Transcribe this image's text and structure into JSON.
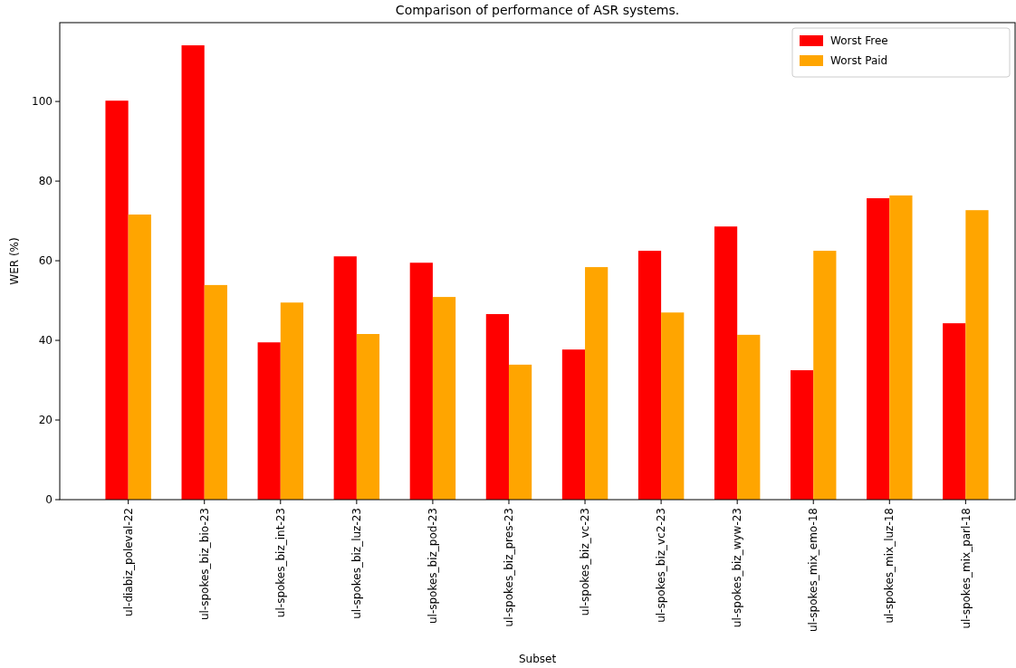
{
  "chart_data": {
    "type": "bar",
    "title": "Comparison of performance of ASR systems.",
    "xlabel": "Subset",
    "ylabel": "WER (%)",
    "categories": [
      "ul-diabiz_poleval-22",
      "ul-spokes_biz_bio-23",
      "ul-spokes_biz_int-23",
      "ul-spokes_biz_luz-23",
      "ul-spokes_biz_pod-23",
      "ul-spokes_biz_pres-23",
      "ul-spokes_biz_vc-23",
      "ul-spokes_biz_vc2-23",
      "ul-spokes_biz_wyw-23",
      "ul-spokes_mix_emo-18",
      "ul-spokes_mix_luz-18",
      "ul-spokes_mix_parl-18"
    ],
    "series": [
      {
        "name": "Worst Free",
        "color": "#ff0000",
        "values": [
          100.2,
          114.1,
          39.5,
          61.1,
          59.5,
          46.6,
          37.7,
          62.5,
          68.6,
          32.5,
          75.7,
          44.3
        ]
      },
      {
        "name": "Worst Paid",
        "color": "#ffa500",
        "values": [
          71.6,
          53.9,
          49.5,
          41.6,
          50.9,
          33.9,
          58.4,
          47.0,
          41.4,
          62.5,
          76.4,
          72.7
        ]
      }
    ],
    "ylim": [
      0,
      119.8
    ],
    "yticks": [
      0,
      20,
      40,
      60,
      80,
      100
    ],
    "legend": "top right"
  }
}
